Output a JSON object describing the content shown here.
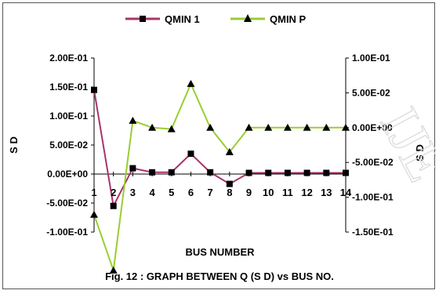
{
  "chart_data": {
    "type": "line",
    "title": "",
    "caption": "Fig. 12 : GRAPH BETWEEN Q (S D) vs BUS NO.",
    "xlabel": "BUS NUMBER",
    "ylabel": "S D",
    "y2label": "S D",
    "categories": [
      "1",
      "2",
      "3",
      "4",
      "5",
      "6",
      "7",
      "8",
      "9",
      "10",
      "11",
      "12",
      "13",
      "14"
    ],
    "y_left": {
      "range": [
        -0.1,
        0.2
      ],
      "ticks": [
        "2.00E-01",
        "1.50E-01",
        "1.00E-01",
        "5.00E-02",
        "0.00E+00",
        "-5.00E-02",
        "-1.00E-01"
      ],
      "tick_values": [
        0.2,
        0.15,
        0.1,
        0.05,
        0,
        -0.05,
        -0.1
      ]
    },
    "y_right": {
      "range": [
        -0.15,
        0.1
      ],
      "ticks": [
        "1.00E-01",
        "5.00E-02",
        "0.00E+00",
        "-5.00E-02",
        "-1.00E-01",
        "-1.50E-01"
      ],
      "tick_values": [
        0.1,
        0.05,
        0,
        -0.05,
        -0.1,
        -0.15
      ]
    },
    "legend_position": "top",
    "series": [
      {
        "name": "QMIN 1",
        "axis": "left",
        "color": "#a8336b",
        "marker": "square",
        "values": [
          0.145,
          -0.055,
          0.01,
          0.003,
          0.003,
          0.035,
          0.003,
          -0.017,
          0.002,
          0.002,
          0.002,
          0.002,
          0.002,
          0.002
        ]
      },
      {
        "name": "QMIN P",
        "axis": "right",
        "color": "#9acd32",
        "marker": "triangle",
        "values": [
          -0.125,
          -0.205,
          0.01,
          0.0,
          -0.002,
          0.063,
          0.0,
          -0.035,
          0.0,
          0.0,
          0.0,
          0.0,
          0.0,
          0.0
        ]
      }
    ]
  },
  "watermark": "IJE"
}
